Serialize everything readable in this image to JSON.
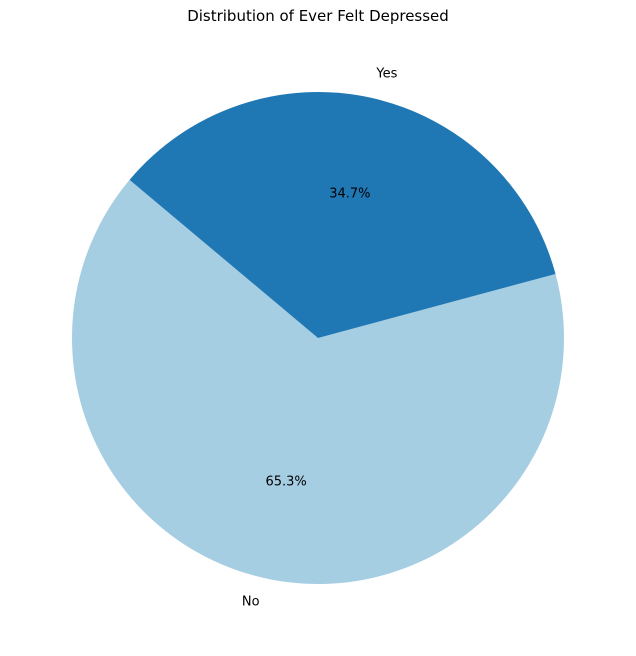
{
  "chart_data": {
    "type": "pie",
    "title": "Distribution of Ever Felt Depressed",
    "slices": [
      {
        "label": "No",
        "value": 65.3,
        "pct_label": "65.3%",
        "color": "#a6cee3"
      },
      {
        "label": "Yes",
        "value": 34.7,
        "pct_label": "34.7%",
        "color": "#1f78b4"
      }
    ],
    "start_angle_deg": 140,
    "direction": "counterclockwise"
  }
}
